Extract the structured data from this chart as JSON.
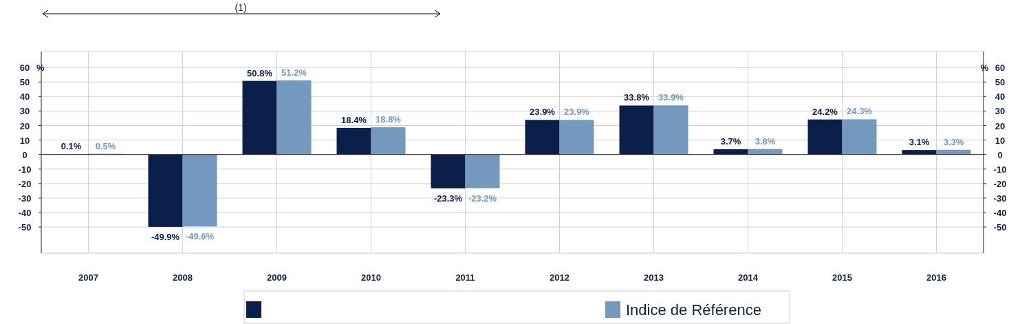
{
  "chart_data": {
    "type": "bar",
    "categories": [
      "2007",
      "2008",
      "2009",
      "2010",
      "2011",
      "2012",
      "2013",
      "2014",
      "2015",
      "2016"
    ],
    "series": [
      {
        "color": "#0b1f4b",
        "values": [
          0.1,
          -49.9,
          50.8,
          18.4,
          -23.3,
          23.9,
          33.8,
          3.7,
          24.2,
          3.1
        ],
        "value_labels": [
          "0.1%",
          "-49.9%",
          "50.8%",
          "18.4%",
          "-23.3%",
          "23.9%",
          "33.8%",
          "3.7%",
          "24.2%",
          "3.1%"
        ]
      },
      {
        "name": "Indice de Référence",
        "color": "#7399bf",
        "values": [
          0.5,
          -49.6,
          51.2,
          18.8,
          -23.2,
          23.9,
          33.9,
          3.8,
          24.3,
          3.3
        ],
        "value_labels": [
          "0.5%",
          "-49.6%",
          "51.2%",
          "18.8%",
          "-23.2%",
          "23.9%",
          "33.9%",
          "3.8%",
          "24.3%",
          "3.3%"
        ]
      }
    ],
    "ylim": [
      -68,
      71
    ],
    "yticks": [
      -50,
      -40,
      -30,
      -20,
      -10,
      0,
      10,
      20,
      30,
      40,
      50,
      60
    ],
    "y2lim": [
      -68,
      71
    ],
    "y2ticks": [
      -50,
      -40,
      -30,
      -20,
      -10,
      0,
      10,
      20,
      30,
      40,
      50,
      60
    ],
    "ylabel": "%",
    "y2label": "%",
    "annotations": [
      "(1)"
    ],
    "grid": true,
    "legend": "bottom"
  }
}
